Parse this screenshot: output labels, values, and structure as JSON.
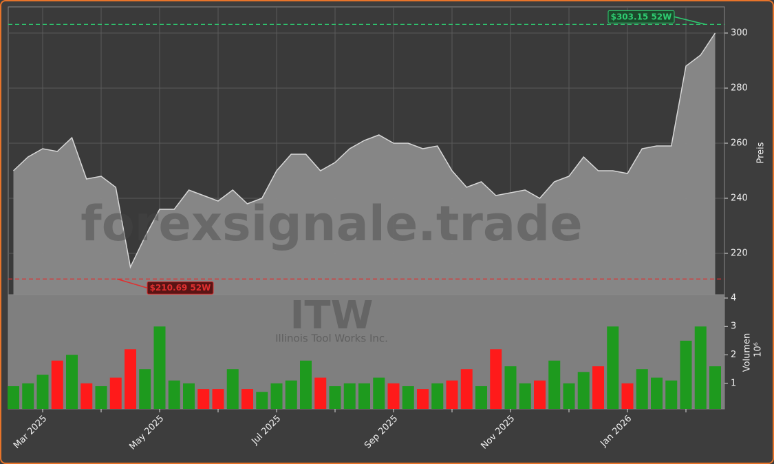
{
  "chart_data": [
    {
      "type": "area",
      "watermark": "forexsignale.trade",
      "symbol": "ITW",
      "company": "Illinois Tool Works Inc.",
      "ylabel": "Preis",
      "ylim": [
        205,
        309.5
      ],
      "yticks": [
        220,
        240,
        260,
        280,
        300
      ],
      "grid": true,
      "color": "#8a8a8a",
      "line_color": "#d8d8d8",
      "values": [
        250,
        255,
        258,
        257,
        262,
        247,
        248,
        244,
        215,
        226,
        236,
        236,
        243,
        241,
        239,
        243,
        238,
        240,
        250,
        256,
        256,
        250,
        253,
        258,
        261,
        263,
        260,
        260,
        258,
        259,
        250,
        244,
        246,
        241,
        242,
        243,
        240,
        246,
        248,
        255,
        250,
        250,
        249,
        258,
        259,
        259,
        288,
        292,
        300
      ],
      "annotations": [
        {
          "value": 303.15,
          "label": "$303.15 52W",
          "color": "#2ecc71"
        },
        {
          "value": 210.69,
          "label": "$210.69 52W",
          "color": "#e03030"
        }
      ]
    },
    {
      "type": "bar",
      "ylabel": "Volumen",
      "scale_label": "10⁶",
      "ylim": [
        0.1,
        4.12
      ],
      "yticks": [
        1,
        2,
        3,
        4
      ],
      "up_color": "#1e9a1e",
      "down_color": "#ff1a1a",
      "categories": [
        null,
        null,
        "Mar 2025",
        null,
        null,
        null,
        null,
        null,
        null,
        null,
        "May 2025",
        null,
        null,
        null,
        null,
        null,
        null,
        null,
        "Jul 2025",
        null,
        null,
        null,
        null,
        null,
        null,
        null,
        "Sep 2025",
        null,
        null,
        null,
        null,
        null,
        null,
        null,
        "Nov 2025",
        null,
        null,
        null,
        null,
        null,
        null,
        null,
        "Jan 2026",
        null,
        null,
        null,
        null,
        null,
        null
      ],
      "values": [
        0.9,
        1.0,
        1.3,
        1.8,
        2.0,
        1.0,
        0.9,
        1.2,
        2.2,
        1.5,
        3.0,
        1.1,
        1.0,
        0.8,
        0.8,
        1.5,
        0.8,
        0.7,
        1.0,
        1.1,
        1.8,
        1.2,
        0.9,
        1.0,
        1.0,
        1.2,
        1.0,
        0.9,
        0.8,
        1.0,
        1.1,
        1.5,
        0.9,
        2.2,
        1.6,
        1.0,
        1.1,
        1.8,
        1.0,
        1.4,
        1.6,
        3.0,
        1.0,
        1.5,
        1.2,
        1.1,
        2.5,
        3.0,
        1.6
      ]
    }
  ]
}
